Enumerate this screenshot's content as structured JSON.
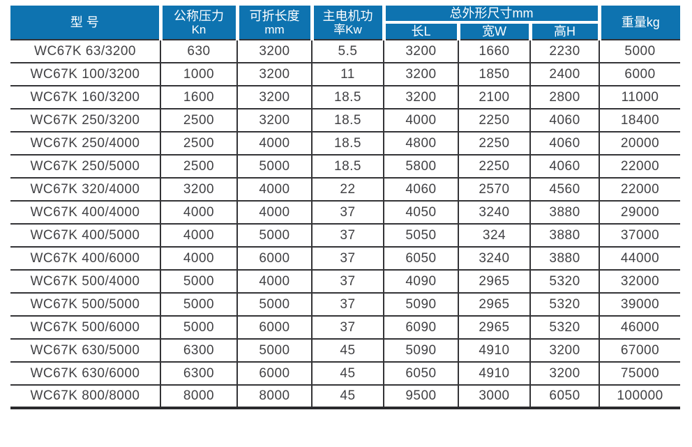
{
  "colors": {
    "header_bg": "#0e73b0",
    "header_text": "#ffffff",
    "grid_line": "#333336",
    "body_text": "#414144"
  },
  "table": {
    "header": {
      "model": "型 号",
      "pressure": [
        "公称压力",
        "Kn"
      ],
      "fold_length": [
        "可折长度",
        "mm"
      ],
      "power": [
        "主电机功",
        "率Kw"
      ],
      "dims_group": "总外形尺寸mm",
      "dim_l": "长L",
      "dim_w": "宽W",
      "dim_h": "高H",
      "weight": "重量kg"
    },
    "rows": [
      {
        "model": "WC67K 63/3200",
        "pressure": "630",
        "fold_length": "3200",
        "power": "5.5",
        "dim_l": "3200",
        "dim_w": "1660",
        "dim_h": "2230",
        "weight": "5000"
      },
      {
        "model": "WC67K 100/3200",
        "pressure": "1000",
        "fold_length": "3200",
        "power": "11",
        "dim_l": "3200",
        "dim_w": "1850",
        "dim_h": "2400",
        "weight": "6000"
      },
      {
        "model": "WC67K 160/3200",
        "pressure": "1600",
        "fold_length": "3200",
        "power": "18.5",
        "dim_l": "3200",
        "dim_w": "2100",
        "dim_h": "2800",
        "weight": "11000"
      },
      {
        "model": "WC67K 250/3200",
        "pressure": "2500",
        "fold_length": "3200",
        "power": "18.5",
        "dim_l": "4000",
        "dim_w": "2250",
        "dim_h": "4060",
        "weight": "18400"
      },
      {
        "model": "WC67K 250/4000",
        "pressure": "2500",
        "fold_length": "4000",
        "power": "18.5",
        "dim_l": "4800",
        "dim_w": "2250",
        "dim_h": "4060",
        "weight": "20000"
      },
      {
        "model": "WC67K 250/5000",
        "pressure": "2500",
        "fold_length": "5000",
        "power": "18.5",
        "dim_l": "5800",
        "dim_w": "2250",
        "dim_h": "4060",
        "weight": "22000"
      },
      {
        "model": "WC67K 320/4000",
        "pressure": "3200",
        "fold_length": "4000",
        "power": "22",
        "dim_l": "4060",
        "dim_w": "2570",
        "dim_h": "4560",
        "weight": "22000"
      },
      {
        "model": "WC67K 400/4000",
        "pressure": "4000",
        "fold_length": "4000",
        "power": "37",
        "dim_l": "4050",
        "dim_w": "3240",
        "dim_h": "3880",
        "weight": "29000"
      },
      {
        "model": "WC67K 400/5000",
        "pressure": "4000",
        "fold_length": "5000",
        "power": "37",
        "dim_l": "5050",
        "dim_w": "324",
        "dim_h": "3880",
        "weight": "37000"
      },
      {
        "model": "WC67K 400/6000",
        "pressure": "4000",
        "fold_length": "6000",
        "power": "37",
        "dim_l": "6050",
        "dim_w": "3240",
        "dim_h": "3880",
        "weight": "44000"
      },
      {
        "model": "WC67K 500/4000",
        "pressure": "5000",
        "fold_length": "4000",
        "power": "37",
        "dim_l": "4090",
        "dim_w": "2965",
        "dim_h": "5320",
        "weight": "32000"
      },
      {
        "model": "WC67K 500/5000",
        "pressure": "5000",
        "fold_length": "5000",
        "power": "37",
        "dim_l": "5090",
        "dim_w": "2965",
        "dim_h": "5320",
        "weight": "39000"
      },
      {
        "model": "WC67K 500/6000",
        "pressure": "5000",
        "fold_length": "6000",
        "power": "37",
        "dim_l": "6090",
        "dim_w": "2965",
        "dim_h": "5320",
        "weight": "46000"
      },
      {
        "model": "WC67K 630/5000",
        "pressure": "6300",
        "fold_length": "5000",
        "power": "45",
        "dim_l": "5090",
        "dim_w": "4910",
        "dim_h": "3200",
        "weight": "67000"
      },
      {
        "model": "WC67K 630/6000",
        "pressure": "6300",
        "fold_length": "6000",
        "power": "45",
        "dim_l": "6050",
        "dim_w": "4910",
        "dim_h": "3200",
        "weight": "75000"
      },
      {
        "model": "WC67K 800/8000",
        "pressure": "8000",
        "fold_length": "8000",
        "power": "45",
        "dim_l": "9500",
        "dim_w": "3000",
        "dim_h": "6050",
        "weight": "100000"
      }
    ]
  }
}
